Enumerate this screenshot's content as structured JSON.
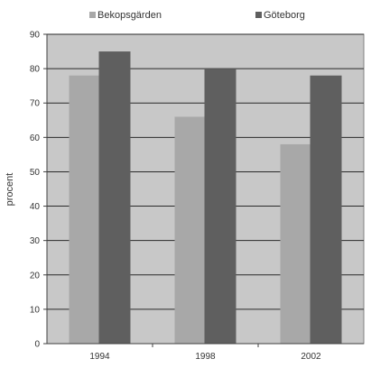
{
  "chart_data": {
    "type": "bar",
    "categories": [
      "1994",
      "1998",
      "2002"
    ],
    "series": [
      {
        "name": "Bekopsgärden",
        "values": [
          78,
          66,
          58
        ],
        "color": "#a8a8a8"
      },
      {
        "name": "Göteborg",
        "values": [
          85,
          80,
          78
        ],
        "color": "#5f5f5f"
      }
    ],
    "title": "",
    "xlabel": "",
    "ylabel": "procent",
    "ylim": [
      0,
      90
    ],
    "yticks": [
      "0",
      "10",
      "20",
      "30",
      "40",
      "50",
      "60",
      "70",
      "80",
      "90"
    ],
    "grid": true,
    "legend_position": "top",
    "plot_background": "#c8c8c8",
    "gridline_color": "#2a2a2a"
  }
}
